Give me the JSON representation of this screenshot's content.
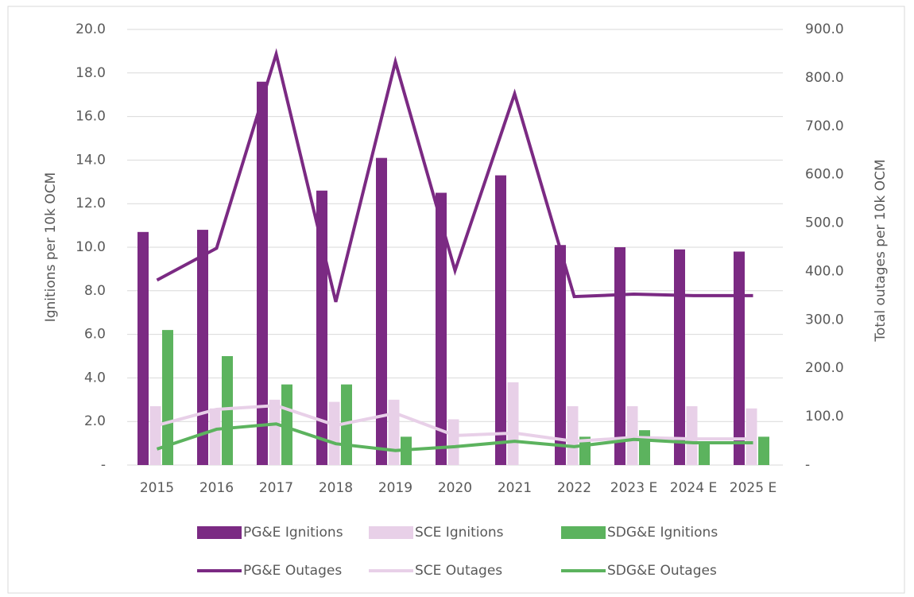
{
  "chart_data": {
    "type": "bar",
    "categories": [
      "2015",
      "2016",
      "2017",
      "2018",
      "2019",
      "2020",
      "2021",
      "2022",
      "2023 E",
      "2024 E",
      "2025 E"
    ],
    "ylabel": "Ignitions per 10k OCM",
    "y2label": "Total outages per 10k OCM",
    "ylim": [
      0,
      20
    ],
    "yticks": [
      {
        "value": 0,
        "label": "-"
      },
      {
        "value": 2,
        "label": "2.0"
      },
      {
        "value": 4,
        "label": "4.0"
      },
      {
        "value": 6,
        "label": "6.0"
      },
      {
        "value": 8,
        "label": "8.0"
      },
      {
        "value": 10,
        "label": "10.0"
      },
      {
        "value": 12,
        "label": "12.0"
      },
      {
        "value": 14,
        "label": "14.0"
      },
      {
        "value": 16,
        "label": "16.0"
      },
      {
        "value": 18,
        "label": "18.0"
      },
      {
        "value": 20,
        "label": "20.0"
      }
    ],
    "y2lim": [
      0,
      900
    ],
    "y2ticks": [
      {
        "value": 0,
        "label": "-"
      },
      {
        "value": 100,
        "label": "100.0"
      },
      {
        "value": 200,
        "label": "200.0"
      },
      {
        "value": 300,
        "label": "300.0"
      },
      {
        "value": 400,
        "label": "400.0"
      },
      {
        "value": 500,
        "label": "500.0"
      },
      {
        "value": 600,
        "label": "600.0"
      },
      {
        "value": 700,
        "label": "700.0"
      },
      {
        "value": 800,
        "label": "800.0"
      },
      {
        "value": 900,
        "label": "900.0"
      }
    ],
    "grid": true,
    "legend": "bottom",
    "series": [
      {
        "name": "PG&E Ignitions",
        "type": "bar",
        "color": "#7b2a83",
        "values": [
          10.7,
          10.8,
          17.6,
          12.6,
          14.1,
          12.5,
          13.3,
          10.1,
          10.0,
          9.9,
          9.8
        ]
      },
      {
        "name": "SCE Ignitions",
        "type": "bar",
        "color": "#e8d0e8",
        "values": [
          2.7,
          2.6,
          3.0,
          2.9,
          3.0,
          2.1,
          3.8,
          2.7,
          2.7,
          2.7,
          2.6
        ]
      },
      {
        "name": "SDG&E Ignitions",
        "type": "bar",
        "color": "#5cb35e",
        "values": [
          6.2,
          5.0,
          3.7,
          3.7,
          1.3,
          0,
          0,
          1.3,
          1.6,
          1.0,
          1.3
        ]
      },
      {
        "name": "PG&E Outages",
        "type": "line",
        "axis": "y2",
        "color": "#7b2a83",
        "values": [
          382,
          448,
          849,
          337,
          833,
          402,
          767,
          348,
          353,
          350,
          350
        ]
      },
      {
        "name": "SCE Outages",
        "type": "line",
        "axis": "y2",
        "color": "#e8d0e8",
        "values": [
          82,
          115,
          123,
          82,
          107,
          61,
          66,
          49,
          57,
          54,
          54
        ]
      },
      {
        "name": "SDG&E Outages",
        "type": "line",
        "axis": "y2",
        "color": "#5cb35e",
        "values": [
          33,
          74,
          85,
          44,
          30,
          38,
          49,
          38,
          53,
          46,
          46
        ]
      }
    ]
  }
}
